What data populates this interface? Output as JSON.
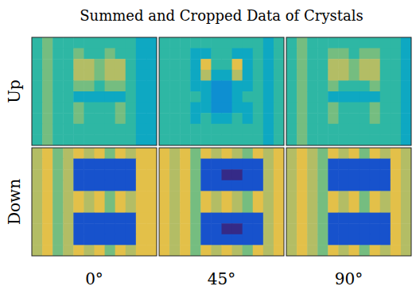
{
  "chart_data": {
    "type": "heatmap",
    "title": "Summed and Cropped Data of Crystals",
    "row_labels": [
      "Up",
      "Down"
    ],
    "col_labels": [
      "0°",
      "45°",
      "90°"
    ],
    "tick_labels": false,
    "clim": [
      0,
      10
    ],
    "cells": [
      [
        [
          [
            5,
            6,
            5,
            5,
            5,
            5,
            5,
            5,
            5,
            5,
            4,
            4
          ],
          [
            5,
            6,
            5,
            5,
            6,
            5,
            5,
            6,
            5,
            5,
            4,
            4
          ],
          [
            5,
            6,
            5,
            5,
            7,
            7,
            6,
            7,
            7,
            5,
            4,
            4
          ],
          [
            5,
            6,
            5,
            5,
            7,
            7,
            6,
            7,
            7,
            5,
            4,
            4
          ],
          [
            5,
            6,
            5,
            5,
            6,
            6,
            5,
            6,
            6,
            5,
            4,
            4
          ],
          [
            5,
            6,
            5,
            5,
            4,
            4,
            4,
            4,
            4,
            5,
            4,
            4
          ],
          [
            5,
            6,
            5,
            5,
            6,
            5,
            5,
            5,
            6,
            5,
            4,
            4
          ],
          [
            5,
            6,
            5,
            5,
            6,
            5,
            5,
            5,
            6,
            5,
            4,
            4
          ],
          [
            5,
            6,
            5,
            5,
            5,
            5,
            5,
            5,
            5,
            5,
            4,
            4
          ],
          [
            5,
            6,
            5,
            5,
            5,
            5,
            5,
            5,
            5,
            5,
            4,
            4
          ]
        ],
        [
          [
            5,
            5,
            5,
            5,
            5,
            5,
            5,
            5,
            5,
            5,
            4,
            5
          ],
          [
            5,
            5,
            5,
            4,
            4,
            5,
            5,
            4,
            4,
            5,
            4,
            5
          ],
          [
            5,
            5,
            5,
            4,
            8,
            5,
            5,
            8,
            4,
            5,
            4,
            5
          ],
          [
            5,
            5,
            5,
            4,
            7,
            4,
            4,
            7,
            4,
            5,
            4,
            5
          ],
          [
            5,
            5,
            5,
            4,
            4,
            3,
            3,
            4,
            4,
            5,
            4,
            5
          ],
          [
            5,
            5,
            5,
            5,
            4,
            3,
            3,
            4,
            5,
            5,
            4,
            5
          ],
          [
            5,
            5,
            5,
            4,
            4,
            3,
            3,
            4,
            4,
            5,
            4,
            5
          ],
          [
            5,
            5,
            5,
            4,
            5,
            4,
            4,
            5,
            4,
            5,
            4,
            5
          ],
          [
            5,
            5,
            5,
            5,
            5,
            5,
            5,
            5,
            5,
            5,
            4,
            5
          ],
          [
            5,
            5,
            5,
            5,
            5,
            5,
            5,
            5,
            5,
            5,
            4,
            5
          ]
        ],
        [
          [
            5,
            6,
            5,
            5,
            5,
            5,
            5,
            5,
            5,
            5,
            5,
            4
          ],
          [
            5,
            6,
            5,
            5,
            6,
            6,
            5,
            6,
            6,
            5,
            5,
            4
          ],
          [
            5,
            6,
            5,
            5,
            7,
            7,
            6,
            7,
            7,
            5,
            5,
            4
          ],
          [
            5,
            6,
            5,
            5,
            7,
            7,
            6,
            7,
            7,
            5,
            5,
            4
          ],
          [
            5,
            6,
            5,
            5,
            6,
            5,
            5,
            5,
            6,
            5,
            5,
            4
          ],
          [
            5,
            6,
            5,
            5,
            4,
            4,
            4,
            4,
            4,
            5,
            5,
            4
          ],
          [
            5,
            6,
            5,
            5,
            6,
            5,
            5,
            5,
            6,
            5,
            5,
            4
          ],
          [
            5,
            6,
            5,
            5,
            6,
            5,
            5,
            5,
            6,
            5,
            5,
            4
          ],
          [
            5,
            6,
            5,
            5,
            5,
            5,
            5,
            5,
            5,
            5,
            5,
            4
          ],
          [
            5,
            6,
            5,
            5,
            5,
            5,
            5,
            5,
            5,
            5,
            5,
            4
          ]
        ]
      ],
      [
        [
          [
            7,
            8,
            6,
            7,
            8,
            7,
            8,
            6,
            8,
            7,
            8,
            8
          ],
          [
            7,
            8,
            6,
            7,
            1,
            1,
            1,
            1,
            1,
            1,
            8,
            8
          ],
          [
            7,
            8,
            6,
            7,
            1,
            1,
            1,
            1,
            1,
            1,
            8,
            8
          ],
          [
            7,
            8,
            6,
            7,
            1,
            1,
            1,
            1,
            1,
            1,
            8,
            8
          ],
          [
            7,
            8,
            6,
            7,
            8,
            7,
            8,
            6,
            8,
            7,
            8,
            8
          ],
          [
            7,
            8,
            6,
            7,
            8,
            7,
            8,
            6,
            8,
            7,
            8,
            8
          ],
          [
            7,
            8,
            6,
            7,
            1,
            1,
            1,
            1,
            1,
            1,
            8,
            8
          ],
          [
            7,
            8,
            6,
            7,
            1,
            1,
            1,
            1,
            1,
            1,
            8,
            8
          ],
          [
            7,
            8,
            6,
            7,
            1,
            1,
            1,
            1,
            1,
            1,
            8,
            8
          ],
          [
            7,
            8,
            6,
            7,
            8,
            7,
            8,
            6,
            8,
            7,
            8,
            8
          ]
        ],
        [
          [
            8,
            7,
            8,
            6,
            8,
            7,
            8,
            7,
            6,
            8,
            7,
            8
          ],
          [
            8,
            7,
            8,
            6,
            1,
            1,
            1,
            1,
            1,
            1,
            7,
            8
          ],
          [
            8,
            7,
            8,
            6,
            1,
            1,
            0,
            0,
            1,
            1,
            7,
            8
          ],
          [
            8,
            7,
            8,
            6,
            1,
            1,
            1,
            1,
            1,
            1,
            7,
            8
          ],
          [
            8,
            7,
            8,
            6,
            8,
            7,
            8,
            7,
            6,
            8,
            7,
            8
          ],
          [
            8,
            7,
            8,
            6,
            8,
            7,
            8,
            7,
            6,
            8,
            7,
            8
          ],
          [
            8,
            7,
            8,
            6,
            1,
            1,
            1,
            1,
            1,
            1,
            7,
            8
          ],
          [
            8,
            7,
            8,
            6,
            1,
            1,
            0,
            0,
            1,
            1,
            7,
            8
          ],
          [
            8,
            7,
            8,
            6,
            1,
            1,
            1,
            1,
            1,
            1,
            7,
            8
          ],
          [
            8,
            7,
            8,
            6,
            8,
            7,
            8,
            7,
            6,
            8,
            7,
            8
          ]
        ],
        [
          [
            7,
            8,
            7,
            6,
            8,
            7,
            8,
            6,
            8,
            7,
            8,
            7
          ],
          [
            7,
            8,
            7,
            6,
            1,
            1,
            1,
            1,
            1,
            1,
            8,
            7
          ],
          [
            7,
            8,
            7,
            6,
            1,
            1,
            1,
            1,
            1,
            1,
            8,
            7
          ],
          [
            7,
            8,
            7,
            6,
            1,
            1,
            1,
            1,
            1,
            1,
            8,
            7
          ],
          [
            7,
            8,
            7,
            6,
            8,
            7,
            8,
            6,
            8,
            7,
            8,
            7
          ],
          [
            7,
            8,
            7,
            6,
            8,
            7,
            8,
            6,
            8,
            7,
            8,
            7
          ],
          [
            7,
            8,
            7,
            6,
            1,
            1,
            1,
            1,
            1,
            1,
            8,
            7
          ],
          [
            7,
            8,
            7,
            6,
            1,
            1,
            1,
            1,
            1,
            1,
            8,
            7
          ],
          [
            7,
            8,
            7,
            6,
            1,
            1,
            1,
            1,
            1,
            1,
            8,
            7
          ],
          [
            7,
            8,
            7,
            6,
            8,
            7,
            8,
            6,
            8,
            7,
            8,
            7
          ]
        ]
      ]
    ]
  }
}
